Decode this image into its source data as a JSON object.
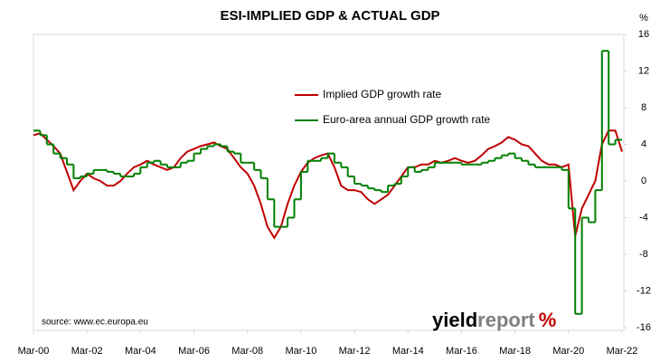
{
  "chart_data": {
    "type": "line",
    "title": "ESI-IMPLIED GDP & ACTUAL GDP",
    "ylabel": "%",
    "x": [
      2000.17,
      2000.42,
      2000.67,
      2000.92,
      2001.17,
      2001.42,
      2001.67,
      2001.92,
      2002.17,
      2002.42,
      2002.67,
      2002.92,
      2003.17,
      2003.42,
      2003.67,
      2003.92,
      2004.17,
      2004.42,
      2004.67,
      2004.92,
      2005.17,
      2005.42,
      2005.67,
      2005.92,
      2006.17,
      2006.42,
      2006.67,
      2006.92,
      2007.17,
      2007.42,
      2007.67,
      2007.92,
      2008.17,
      2008.42,
      2008.67,
      2008.92,
      2009.17,
      2009.42,
      2009.67,
      2009.92,
      2010.17,
      2010.42,
      2010.67,
      2010.92,
      2011.17,
      2011.42,
      2011.67,
      2011.92,
      2012.17,
      2012.42,
      2012.67,
      2012.92,
      2013.17,
      2013.42,
      2013.67,
      2013.92,
      2014.17,
      2014.42,
      2014.67,
      2014.92,
      2015.17,
      2015.42,
      2015.67,
      2015.92,
      2016.17,
      2016.42,
      2016.67,
      2016.92,
      2017.17,
      2017.42,
      2017.67,
      2017.92,
      2018.17,
      2018.42,
      2018.67,
      2018.92,
      2019.17,
      2019.42,
      2019.67,
      2019.92,
      2020.17,
      2020.42,
      2020.67,
      2020.92,
      2021.17,
      2021.42,
      2021.67,
      2021.92,
      2022.17
    ],
    "series": [
      {
        "name": "Implied GDP growth rate",
        "color": "#c00000",
        "values": [
          5.0,
          5.2,
          4.5,
          3.8,
          3.0,
          1.0,
          -1.0,
          0.0,
          0.8,
          0.3,
          0.0,
          -0.5,
          -0.5,
          0.0,
          0.8,
          1.5,
          1.8,
          2.2,
          1.8,
          1.5,
          1.2,
          1.5,
          2.5,
          3.2,
          3.5,
          3.8,
          4.0,
          4.2,
          3.8,
          3.5,
          2.5,
          1.5,
          0.8,
          -0.5,
          -2.5,
          -5.0,
          -6.2,
          -5.0,
          -2.5,
          -0.5,
          1.0,
          2.0,
          2.5,
          2.8,
          3.0,
          1.5,
          -0.5,
          -1.0,
          -1.0,
          -1.2,
          -2.0,
          -2.5,
          -2.0,
          -1.5,
          -0.5,
          0.5,
          1.5,
          1.5,
          1.8,
          1.8,
          2.2,
          2.0,
          2.2,
          2.5,
          2.2,
          2.0,
          2.2,
          2.8,
          3.5,
          3.8,
          4.2,
          4.8,
          4.5,
          4.0,
          3.8,
          3.0,
          2.2,
          1.8,
          1.8,
          1.5,
          1.8,
          -6.0,
          -3.0,
          -1.5,
          0.0,
          4.0,
          5.5,
          5.5,
          3.2
        ]
      },
      {
        "name": "Euro-area annual GDP growth rate",
        "color": "#008000",
        "step": true,
        "values": [
          5.5,
          5.0,
          4.0,
          3.0,
          2.5,
          1.8,
          0.3,
          0.5,
          0.8,
          1.2,
          1.2,
          1.0,
          0.8,
          0.5,
          0.5,
          0.8,
          1.5,
          2.0,
          2.2,
          1.8,
          1.5,
          1.5,
          2.0,
          2.2,
          3.0,
          3.5,
          3.8,
          4.0,
          3.8,
          3.2,
          3.0,
          2.0,
          2.0,
          1.2,
          0.3,
          -2.0,
          -5.0,
          -5.0,
          -4.0,
          -2.0,
          1.0,
          2.2,
          2.2,
          2.5,
          3.0,
          2.0,
          1.5,
          0.5,
          -0.3,
          -0.5,
          -0.8,
          -1.0,
          -1.2,
          -0.5,
          -0.3,
          0.5,
          1.5,
          1.0,
          1.2,
          1.5,
          2.0,
          2.0,
          2.0,
          2.0,
          1.8,
          1.8,
          1.8,
          2.0,
          2.2,
          2.5,
          2.8,
          3.0,
          2.5,
          2.2,
          1.8,
          1.5,
          1.5,
          1.5,
          1.5,
          1.2,
          -3.0,
          -14.5,
          -4.0,
          -4.5,
          -1.0,
          14.2,
          4.0,
          4.5,
          4.5
        ]
      }
    ],
    "xlim": [
      2000.17,
      2022.17
    ],
    "xticks": [
      {
        "value": 2000.17,
        "label": "Mar-00"
      },
      {
        "value": 2002.17,
        "label": "Mar-02"
      },
      {
        "value": 2004.17,
        "label": "Mar-04"
      },
      {
        "value": 2006.17,
        "label": "Mar-06"
      },
      {
        "value": 2008.17,
        "label": "Mar-08"
      },
      {
        "value": 2010.17,
        "label": "Mar-10"
      },
      {
        "value": 2012.17,
        "label": "Mar-12"
      },
      {
        "value": 2014.17,
        "label": "Mar-14"
      },
      {
        "value": 2016.17,
        "label": "Mar-16"
      },
      {
        "value": 2018.17,
        "label": "Mar-18"
      },
      {
        "value": 2020.17,
        "label": "Mar-20"
      },
      {
        "value": 2022.17,
        "label": "Mar-22"
      }
    ],
    "ylim": [
      -16,
      16
    ],
    "yticks": [
      -16,
      -12,
      -8,
      -4,
      0,
      4,
      8,
      12,
      16
    ],
    "source": "source: www.ec.europa.eu",
    "logo": [
      "yield",
      "report",
      "%"
    ]
  }
}
